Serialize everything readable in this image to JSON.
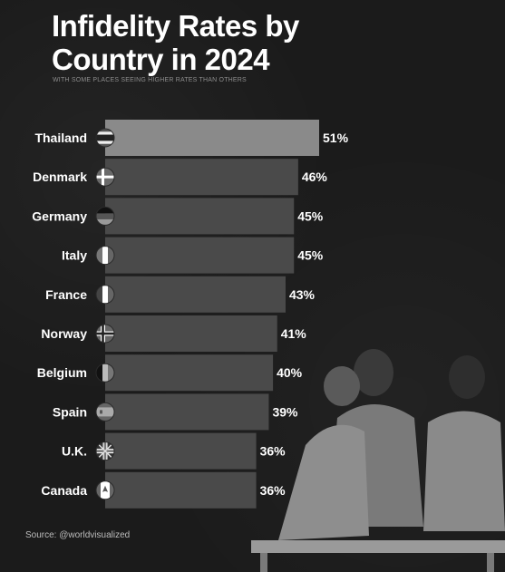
{
  "title": "Infidelity Rates by Country in 2024",
  "subtitle": "WITH SOME PLACES SEEING HIGHER RATES THAN OTHERS",
  "source": "Source: @worldvisualized",
  "chart_data": {
    "type": "bar",
    "orientation": "horizontal",
    "title": "Infidelity Rates by Country in 2024",
    "subtitle": "WITH SOME PLACES SEEING HIGHER RATES THAN OTHERS",
    "categories": [
      "Thailand",
      "Denmark",
      "Germany",
      "Italy",
      "France",
      "Norway",
      "Belgium",
      "Spain",
      "U.K.",
      "Canada"
    ],
    "values": [
      51,
      46,
      45,
      45,
      43,
      41,
      40,
      39,
      36,
      36
    ],
    "value_labels": [
      "51%",
      "46%",
      "45%",
      "45%",
      "43%",
      "41%",
      "40%",
      "39%",
      "36%",
      "36%"
    ],
    "flags": [
      "thailand-flag-icon",
      "denmark-flag-icon",
      "germany-flag-icon",
      "italy-flag-icon",
      "france-flag-icon",
      "norway-flag-icon",
      "belgium-flag-icon",
      "spain-flag-icon",
      "uk-flag-icon",
      "canada-flag-icon"
    ],
    "xlim": [
      0,
      51
    ],
    "grid": false,
    "legend": "none",
    "colors": {
      "bar_top": "#8a8a8a",
      "bar_rest": "#4a4a4a",
      "text": "#ffffff"
    }
  }
}
